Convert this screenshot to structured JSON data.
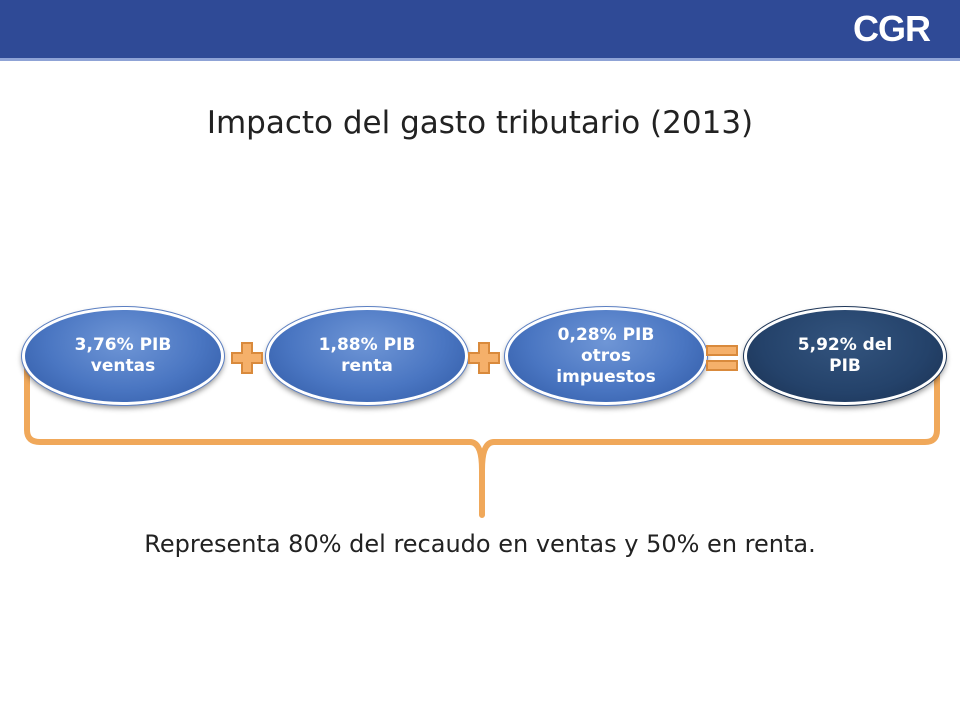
{
  "header": {
    "logo_text": "CGR",
    "bar_color": "#2f4a96"
  },
  "title": "Impacto del gasto tributario (2013)",
  "diagram": {
    "terms": [
      {
        "label": "3,76% PIB\nventas",
        "style": "blue"
      },
      {
        "label": "1,88% PIB\nrenta",
        "style": "blue"
      },
      {
        "label": "0,28% PIB\notros\nimpuestos",
        "style": "blue"
      },
      {
        "label": "5,92% del\nPIB",
        "style": "dark"
      }
    ],
    "operators": [
      "plus-icon",
      "plus-icon",
      "equals-icon"
    ],
    "operator_color": "#f0a85a",
    "brace_color": "#f0a85a"
  },
  "caption": "Representa 80% del recaudo en ventas y 50% en renta."
}
